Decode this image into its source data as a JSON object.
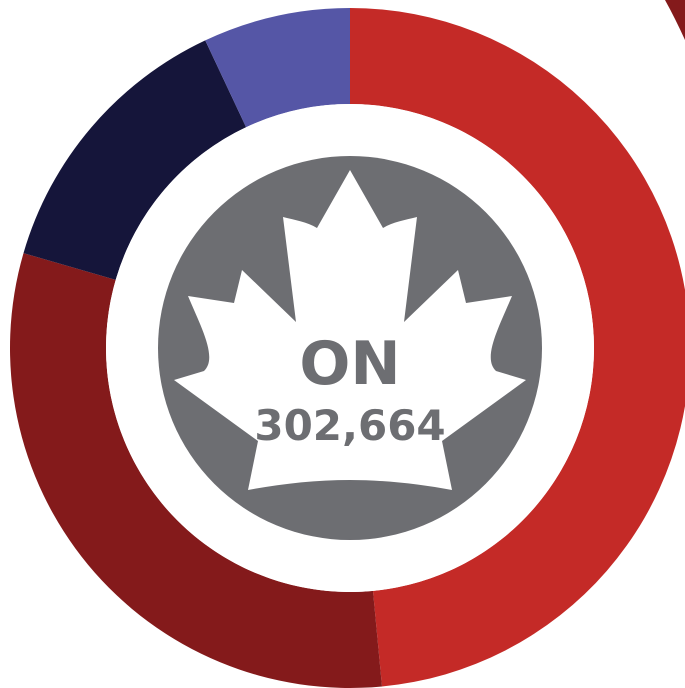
{
  "chart_data": {
    "type": "pie",
    "donut": true,
    "start": "top",
    "direction": "clockwise",
    "slices": [
      {
        "value": 48.5,
        "color": "#c42a27"
      },
      {
        "value": 31.0,
        "color": "#841a1b"
      },
      {
        "value": 13.5,
        "color": "#15153a"
      },
      {
        "value": 7.0,
        "color": "#5556a6"
      }
    ],
    "center": {
      "region": "ON",
      "total": "302,664",
      "badge_color": "#6d6e72",
      "leaf_color": "#ffffff",
      "icon": "maple-leaf-icon"
    },
    "legend": "none"
  },
  "decor": {
    "adjacent_ring_color": "#841a1b"
  }
}
